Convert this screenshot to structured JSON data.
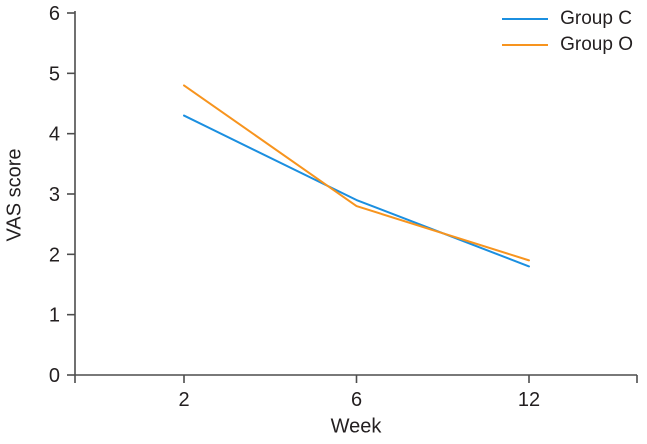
{
  "chart_data": {
    "type": "line",
    "x": [
      2,
      6,
      12
    ],
    "categories": [
      "2",
      "6",
      "12"
    ],
    "series": [
      {
        "name": "Group C",
        "color": "#1b8fe0",
        "values": [
          4.3,
          2.9,
          1.8
        ]
      },
      {
        "name": "Group O",
        "color": "#f7941e",
        "values": [
          4.8,
          2.8,
          1.9
        ]
      }
    ],
    "title": "",
    "xlabel": "Week",
    "ylabel": "VAS score",
    "ylim": [
      0,
      6
    ],
    "yticks": [
      0,
      1,
      2,
      3,
      4,
      5,
      6
    ],
    "grid": false,
    "legend_position": "top-right",
    "axis_color": "#4d4d4d",
    "text_color": "#231f20",
    "background_color": "#ffffff"
  }
}
